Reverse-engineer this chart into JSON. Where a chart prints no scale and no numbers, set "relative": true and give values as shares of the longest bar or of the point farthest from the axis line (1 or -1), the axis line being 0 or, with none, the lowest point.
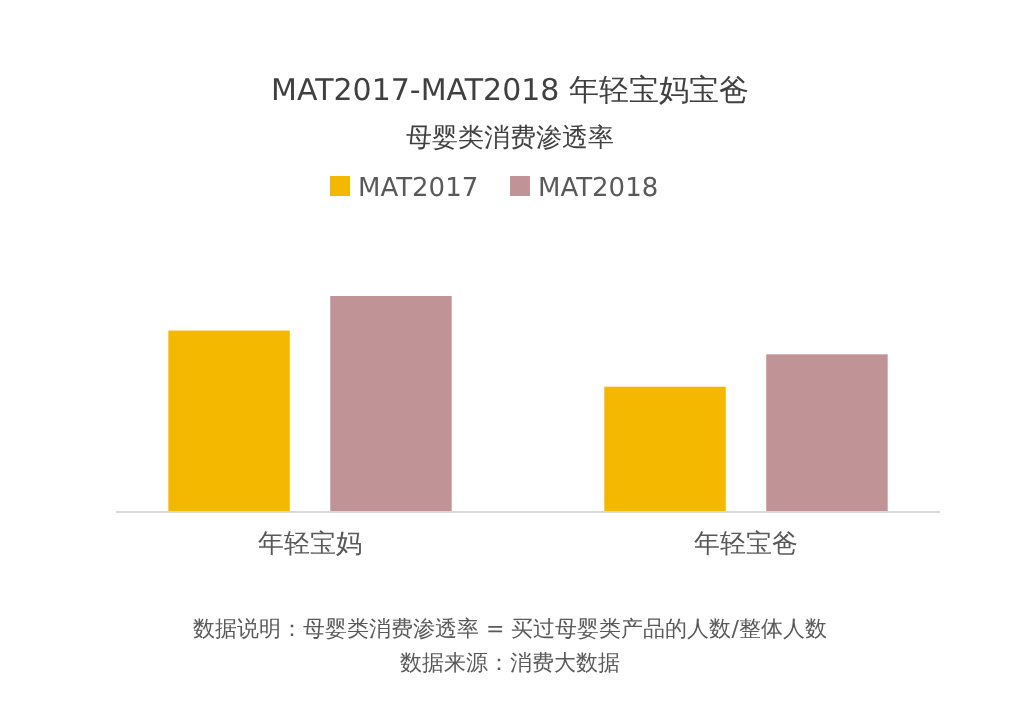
{
  "chart_data": {
    "type": "bar",
    "title": "MAT2017-MAT2018 年轻宝妈宝爸",
    "subtitle": "母婴类消费渗透率",
    "categories": [
      "年轻宝妈",
      "年轻宝爸"
    ],
    "series": [
      {
        "name": "MAT2017",
        "color": "#f5b800",
        "values": [
          0.84,
          0.58
        ]
      },
      {
        "name": "MAT2018",
        "color": "#c09396",
        "values": [
          1,
          0.73
        ]
      }
    ],
    "relative": true,
    "legend": "top",
    "annotations": [
      "数据说明：母婴类消费渗透率 = 买过母婴类产品的人数/整体人数",
      "数据来源：消费大数据"
    ]
  }
}
